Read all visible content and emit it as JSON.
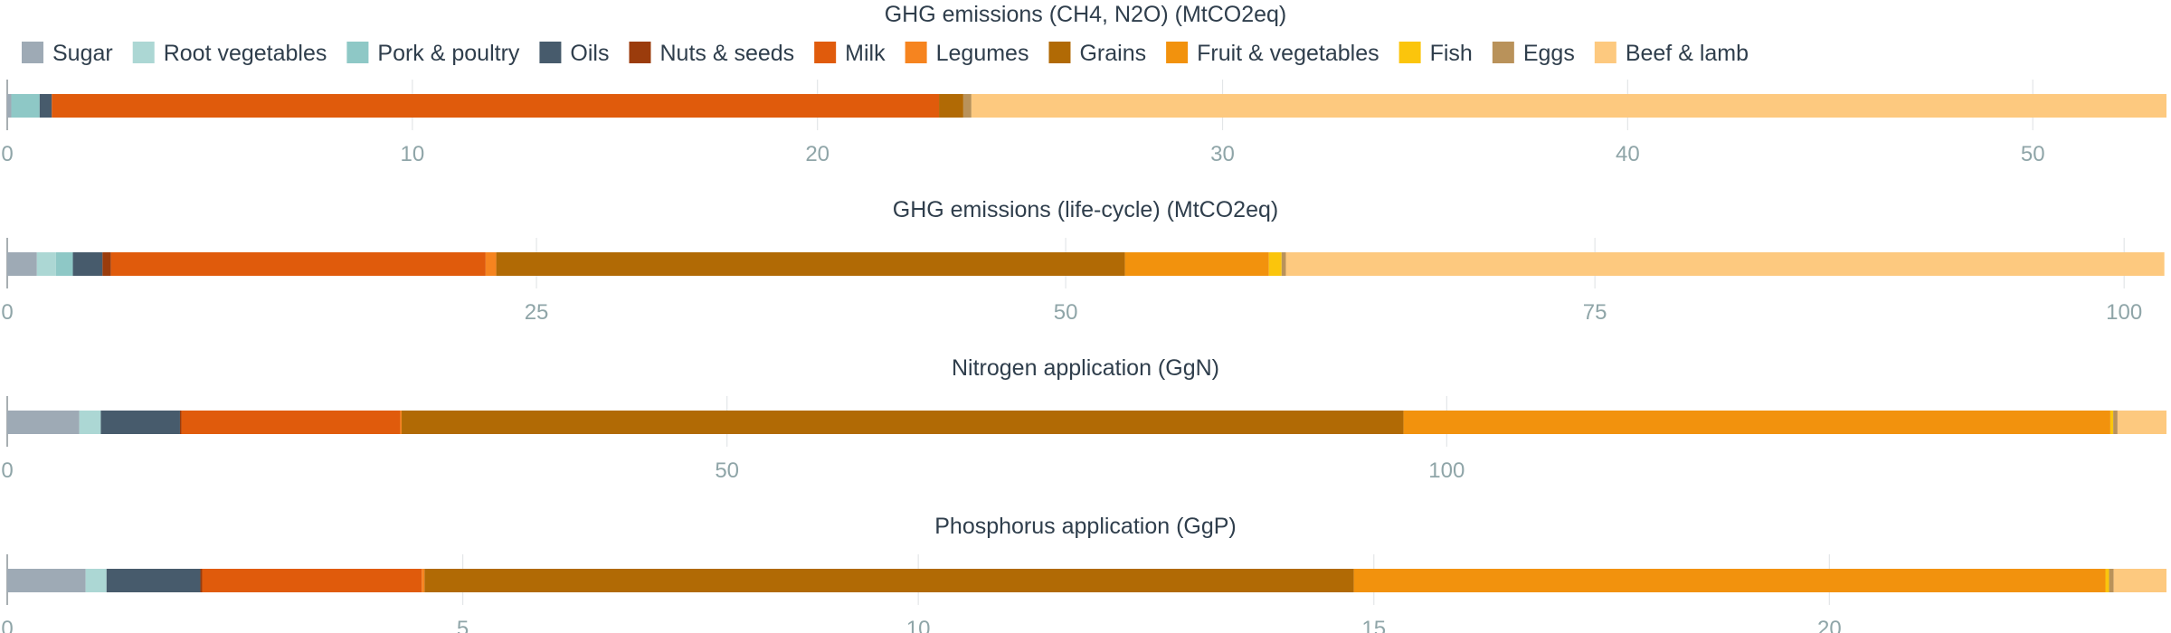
{
  "legend": {
    "entries": [
      {
        "name": "Sugar",
        "color": "#9eaab5"
      },
      {
        "name": "Root vegetables",
        "color": "#acd7d4"
      },
      {
        "name": "Pork & poultry",
        "color": "#8ec8c6"
      },
      {
        "name": "Oils",
        "color": "#475b6c"
      },
      {
        "name": "Nuts & seeds",
        "color": "#9b3c0c"
      },
      {
        "name": "Milk",
        "color": "#e05b0c"
      },
      {
        "name": "Legumes",
        "color": "#f6841f"
      },
      {
        "name": "Grains",
        "color": "#b16a05"
      },
      {
        "name": "Fruit & vegetables",
        "color": "#f2920d"
      },
      {
        "name": "Fish",
        "color": "#fbc50c"
      },
      {
        "name": "Eggs",
        "color": "#b9925a"
      },
      {
        "name": "Beef & lamb",
        "color": "#fdc97f"
      }
    ]
  },
  "chart_data": [
    {
      "type": "bar",
      "orientation": "horizontal-stacked",
      "title": "GHG emissions (CH4, N2O) (MtCO2eq)",
      "xlim": [
        0,
        53.3
      ],
      "xticks": [
        0,
        10,
        20,
        30,
        40,
        50
      ],
      "grid": true,
      "legend_position": "top",
      "series": [
        {
          "name": "Sugar",
          "value": 0.1
        },
        {
          "name": "Root vegetables",
          "value": 0.0
        },
        {
          "name": "Pork & poultry",
          "value": 0.7
        },
        {
          "name": "Oils",
          "value": 0.3
        },
        {
          "name": "Nuts & seeds",
          "value": 0.0
        },
        {
          "name": "Milk",
          "value": 21.9
        },
        {
          "name": "Legumes",
          "value": 0.0
        },
        {
          "name": "Grains",
          "value": 0.6
        },
        {
          "name": "Fruit & vegetables",
          "value": 0.0
        },
        {
          "name": "Fish",
          "value": 0.0
        },
        {
          "name": "Eggs",
          "value": 0.2
        },
        {
          "name": "Beef & lamb",
          "value": 29.5
        }
      ]
    },
    {
      "type": "bar",
      "orientation": "horizontal-stacked",
      "title": "GHG emissions (life-cycle) (MtCO2eq)",
      "xlim": [
        0,
        102
      ],
      "xticks": [
        0,
        25,
        50,
        75,
        100
      ],
      "grid": true,
      "series": [
        {
          "name": "Sugar",
          "value": 1.4
        },
        {
          "name": "Root vegetables",
          "value": 0.9
        },
        {
          "name": "Pork & poultry",
          "value": 0.8
        },
        {
          "name": "Oils",
          "value": 1.4
        },
        {
          "name": "Nuts & seeds",
          "value": 0.4
        },
        {
          "name": "Milk",
          "value": 17.7
        },
        {
          "name": "Legumes",
          "value": 0.5
        },
        {
          "name": "Grains",
          "value": 29.7
        },
        {
          "name": "Fruit & vegetables",
          "value": 6.8
        },
        {
          "name": "Fish",
          "value": 0.6
        },
        {
          "name": "Eggs",
          "value": 0.2
        },
        {
          "name": "Beef & lamb",
          "value": 41.5
        }
      ]
    },
    {
      "type": "bar",
      "orientation": "horizontal-stacked",
      "title": "Nitrogen application (GgN)",
      "xlim": [
        0,
        150
      ],
      "xticks": [
        0,
        50,
        100
      ],
      "grid": true,
      "series": [
        {
          "name": "Sugar",
          "value": 5.0
        },
        {
          "name": "Root vegetables",
          "value": 1.5
        },
        {
          "name": "Pork & poultry",
          "value": 0.0
        },
        {
          "name": "Oils",
          "value": 5.5
        },
        {
          "name": "Nuts & seeds",
          "value": 0.1
        },
        {
          "name": "Milk",
          "value": 15.2
        },
        {
          "name": "Legumes",
          "value": 0.1
        },
        {
          "name": "Grains",
          "value": 69.6
        },
        {
          "name": "Fruit & vegetables",
          "value": 49.1
        },
        {
          "name": "Fish",
          "value": 0.2
        },
        {
          "name": "Eggs",
          "value": 0.3
        },
        {
          "name": "Beef & lamb",
          "value": 3.4
        }
      ]
    },
    {
      "type": "bar",
      "orientation": "horizontal-stacked",
      "title": "Phosphorus application (GgP)",
      "xlim": [
        0,
        23.7
      ],
      "xticks": [
        0,
        5,
        10,
        15,
        20
      ],
      "grid": true,
      "series": [
        {
          "name": "Sugar",
          "value": 0.86
        },
        {
          "name": "Root vegetables",
          "value": 0.23
        },
        {
          "name": "Pork & poultry",
          "value": 0.0
        },
        {
          "name": "Oils",
          "value": 1.03
        },
        {
          "name": "Nuts & seeds",
          "value": 0.02
        },
        {
          "name": "Milk",
          "value": 2.41
        },
        {
          "name": "Legumes",
          "value": 0.03
        },
        {
          "name": "Grains",
          "value": 10.2
        },
        {
          "name": "Fruit & vegetables",
          "value": 8.25
        },
        {
          "name": "Fish",
          "value": 0.04
        },
        {
          "name": "Eggs",
          "value": 0.05
        },
        {
          "name": "Beef & lamb",
          "value": 0.58
        }
      ]
    }
  ]
}
